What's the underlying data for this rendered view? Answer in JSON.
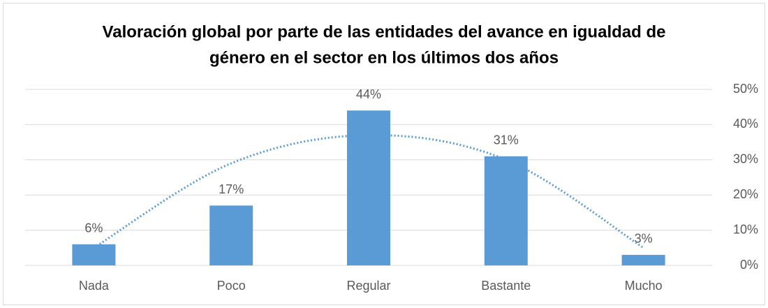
{
  "chart_data": {
    "type": "bar",
    "title": [
      "Valoración global por parte de las entidades del avance en igualdad de",
      "género en el sector en los últimos dos años"
    ],
    "categories": [
      "Nada",
      "Poco",
      "Regular",
      "Bastante",
      "Mucho"
    ],
    "values": [
      6,
      17,
      44,
      31,
      3
    ],
    "value_labels": [
      "6%",
      "17%",
      "44%",
      "31%",
      "3%"
    ],
    "color": "#5b9bd5",
    "trend": {
      "values": [
        5,
        29,
        37,
        30,
        5
      ],
      "color": "#5b9bd5"
    },
    "ylim": [
      0,
      50
    ],
    "yticks": [
      {
        "value": 0,
        "label": "0%"
      },
      {
        "value": 10,
        "label": "10%"
      },
      {
        "value": 20,
        "label": "20%"
      },
      {
        "value": 30,
        "label": "30%"
      },
      {
        "value": 40,
        "label": "40%"
      },
      {
        "value": 50,
        "label": "50%"
      }
    ],
    "grid": true
  }
}
